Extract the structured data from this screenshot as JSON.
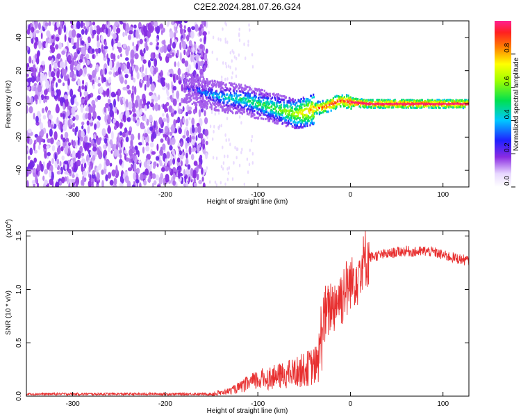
{
  "title": "C2E2.2024.281.07.26.G24",
  "chart_data": [
    {
      "type": "heatmap",
      "xlabel": "Height of straight line (km)",
      "ylabel": "Frequency (Hz)",
      "xlim": [
        -350,
        128
      ],
      "ylim": [
        -50,
        50
      ],
      "xticks": [
        -300,
        -200,
        -100,
        0,
        100
      ],
      "yticks": [
        -40,
        -20,
        0,
        20,
        40
      ],
      "colorbar": {
        "label": "Normalized spectral amplitude",
        "range": [
          0,
          1
        ],
        "ticks": [
          "0.0",
          "0.2",
          "0.4",
          "0.6",
          "0.8"
        ]
      },
      "signal_track": {
        "x": [
          -180,
          -160,
          -140,
          -120,
          -100,
          -80,
          -60,
          -50,
          -40,
          -30,
          -20,
          -10,
          0,
          20,
          60,
          128
        ],
        "y": [
          10,
          7,
          4,
          3,
          0,
          -3,
          -6,
          -5,
          -3,
          -2,
          0,
          2,
          1,
          0,
          0,
          0
        ],
        "amplitude": [
          0.2,
          0.35,
          0.45,
          0.5,
          0.55,
          0.6,
          0.7,
          0.8,
          0.85,
          0.9,
          0.95,
          0.9,
          1.0,
          0.98,
          0.98,
          0.98
        ]
      }
    },
    {
      "type": "line",
      "xlabel": "Height of straight line (km)",
      "ylabel": "SNR (10 * v/v)",
      "yscale_label": "(x10",
      "yscale_exp": "4",
      "yscale_close": ")",
      "xlim": [
        -350,
        128
      ],
      "ylim": [
        0,
        1.55
      ],
      "xticks": [
        -300,
        -200,
        -100,
        0,
        100
      ],
      "yticks": [
        0.0,
        0.5,
        1.0,
        1.5
      ],
      "ytick_labels": [
        "0.0",
        "0.5",
        "1.0",
        "1.5"
      ],
      "series": [
        {
          "color": "#e83030",
          "x": [
            -350,
            -300,
            -250,
            -200,
            -150,
            -140,
            -130,
            -120,
            -110,
            -100,
            -90,
            -80,
            -70,
            -60,
            -50,
            -40,
            -35,
            -30,
            -20,
            -10,
            0,
            10,
            20,
            30,
            40,
            50,
            60,
            70,
            80,
            90,
            100,
            110,
            120,
            128
          ],
          "y": [
            0.02,
            0.02,
            0.02,
            0.02,
            0.02,
            0.03,
            0.05,
            0.08,
            0.12,
            0.15,
            0.17,
            0.18,
            0.2,
            0.22,
            0.25,
            0.28,
            0.3,
            0.7,
            0.85,
            0.95,
            1.05,
            1.2,
            1.3,
            1.32,
            1.33,
            1.35,
            1.36,
            1.35,
            1.36,
            1.35,
            1.32,
            1.3,
            1.28,
            1.27
          ]
        }
      ]
    }
  ]
}
